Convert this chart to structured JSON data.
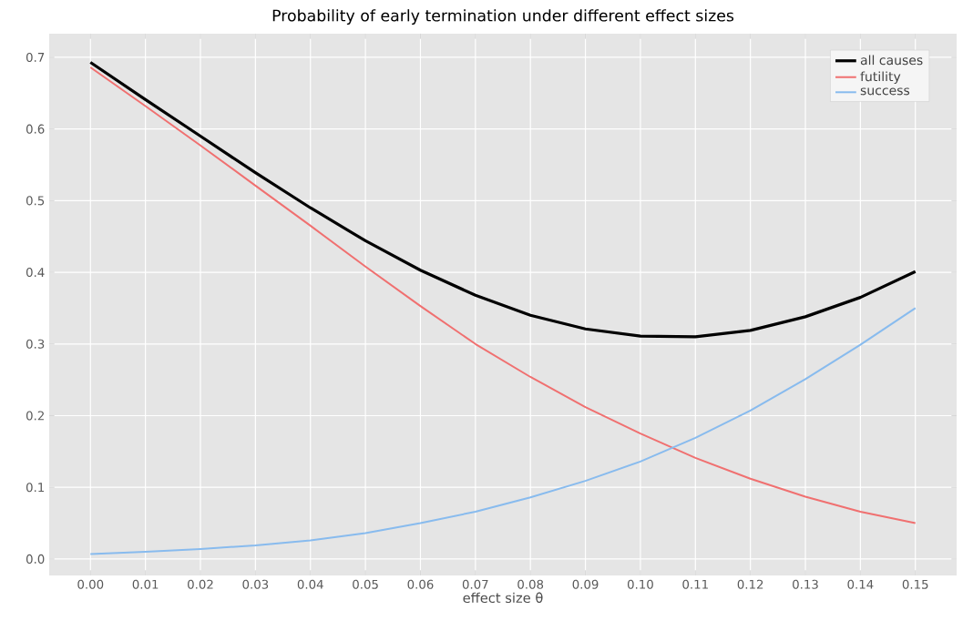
{
  "chart_data": {
    "type": "line",
    "title": "Probability of early termination under different effect sizes",
    "xlabel": "effect size θ",
    "x": [
      0.0,
      0.01,
      0.02,
      0.03,
      0.04,
      0.05,
      0.06,
      0.07,
      0.08,
      0.09,
      0.1,
      0.11,
      0.12,
      0.13,
      0.14,
      0.15
    ],
    "series": [
      {
        "name": "all causes",
        "color": "#000000",
        "values": [
          0.693,
          0.641,
          0.59,
          0.539,
          0.49,
          0.444,
          0.403,
          0.368,
          0.34,
          0.321,
          0.311,
          0.31,
          0.319,
          0.338,
          0.365,
          0.401
        ]
      },
      {
        "name": "futility",
        "color": "#f07070",
        "values": [
          0.686,
          0.632,
          0.577,
          0.521,
          0.465,
          0.408,
          0.353,
          0.3,
          0.254,
          0.212,
          0.175,
          0.141,
          0.112,
          0.087,
          0.066,
          0.05
        ]
      },
      {
        "name": "success",
        "color": "#88bbee",
        "values": [
          0.007,
          0.01,
          0.014,
          0.019,
          0.026,
          0.036,
          0.05,
          0.066,
          0.086,
          0.109,
          0.136,
          0.169,
          0.207,
          0.251,
          0.299,
          0.35
        ]
      }
    ],
    "xlim": [
      -0.0075,
      0.1575
    ],
    "ylim": [
      -0.023,
      0.733
    ],
    "xticks": [
      {
        "value": 0,
        "label": "0.00"
      },
      {
        "value": 0.01,
        "label": "0.01"
      },
      {
        "value": 0.02,
        "label": "0.02"
      },
      {
        "value": 0.03,
        "label": "0.03"
      },
      {
        "value": 0.04,
        "label": "0.04"
      },
      {
        "value": 0.05,
        "label": "0.05"
      },
      {
        "value": 0.06,
        "label": "0.06"
      },
      {
        "value": 0.07,
        "label": "0.07"
      },
      {
        "value": 0.08,
        "label": "0.08"
      },
      {
        "value": 0.09,
        "label": "0.09"
      },
      {
        "value": 0.1,
        "label": "0.10"
      },
      {
        "value": 0.11,
        "label": "0.11"
      },
      {
        "value": 0.12,
        "label": "0.12"
      },
      {
        "value": 0.13,
        "label": "0.13"
      },
      {
        "value": 0.14,
        "label": "0.14"
      },
      {
        "value": 0.15,
        "label": "0.15"
      }
    ],
    "yticks": [
      {
        "value": 0,
        "label": "0.0"
      },
      {
        "value": 0.1,
        "label": "0.1"
      },
      {
        "value": 0.2,
        "label": "0.2"
      },
      {
        "value": 0.3,
        "label": "0.3"
      },
      {
        "value": 0.4,
        "label": "0.4"
      },
      {
        "value": 0.5,
        "label": "0.5"
      },
      {
        "value": 0.6,
        "label": "0.6"
      },
      {
        "value": 0.7,
        "label": "0.7"
      }
    ],
    "grid": true,
    "legend": "top right"
  }
}
